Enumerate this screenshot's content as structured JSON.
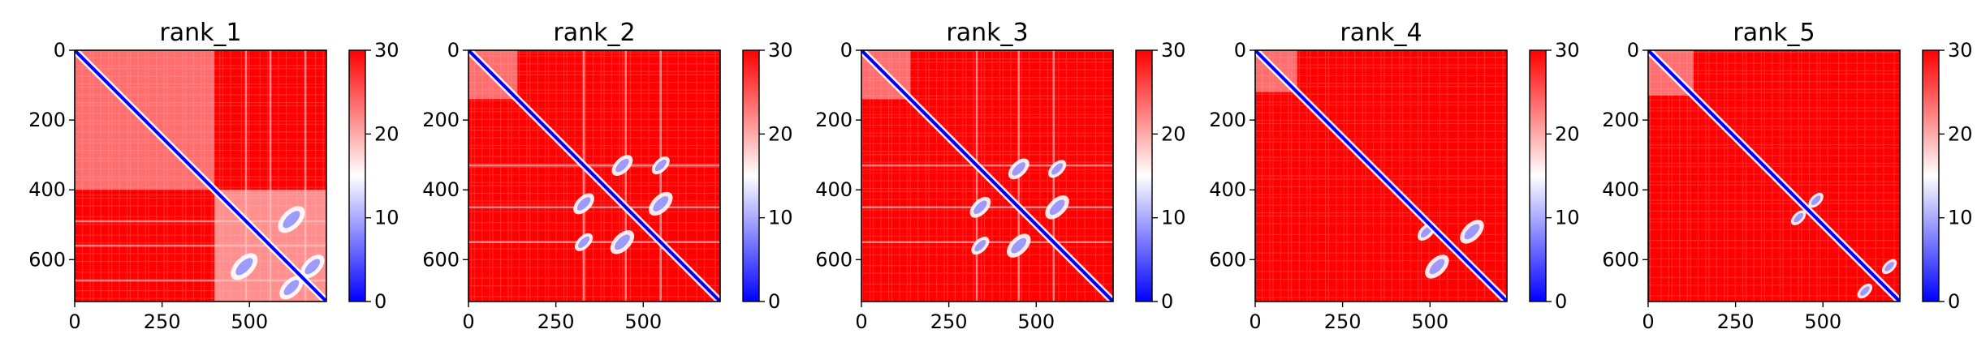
{
  "figure": {
    "description_free": true
  },
  "chart_data": [
    {
      "type": "heatmap",
      "title": "rank_1",
      "xlim": [
        0,
        720
      ],
      "ylim": [
        720,
        0
      ],
      "xticks": [
        0,
        250,
        500
      ],
      "yticks": [
        0,
        200,
        400,
        600
      ],
      "colorbar": {
        "min": 0,
        "max": 30,
        "ticks": [
          0,
          10,
          20,
          30
        ],
        "colormap": "bwr"
      },
      "colors": {
        "low": "#0000ff",
        "mid": "#ffffff",
        "high": "#ff0000"
      },
      "near_diagonal_region": [
        [
          0,
          400
        ]
      ],
      "domains": [
        [
          400,
          720
        ]
      ],
      "stripes": [
        490,
        560,
        660
      ],
      "lobes": [
        [
          485,
          620,
          45
        ],
        [
          620,
          485,
          45
        ],
        [
          620,
          680,
          40
        ],
        [
          680,
          620,
          40
        ]
      ]
    },
    {
      "type": "heatmap",
      "title": "rank_2",
      "xlim": [
        0,
        720
      ],
      "ylim": [
        720,
        0
      ],
      "xticks": [
        0,
        250,
        500
      ],
      "yticks": [
        0,
        200,
        400,
        600
      ],
      "colorbar": {
        "min": 0,
        "max": 30,
        "ticks": [
          0,
          10,
          20,
          30
        ],
        "colormap": "bwr"
      },
      "colors": {
        "low": "#0000ff",
        "mid": "#ffffff",
        "high": "#ff0000"
      },
      "near_diagonal_region": [
        [
          0,
          140
        ]
      ],
      "domains": [],
      "stripes": [
        330,
        450,
        550
      ],
      "lobes": [
        [
          330,
          440,
          35
        ],
        [
          440,
          330,
          35
        ],
        [
          440,
          550,
          40
        ],
        [
          550,
          440,
          40
        ],
        [
          330,
          550,
          30
        ],
        [
          550,
          330,
          30
        ]
      ]
    },
    {
      "type": "heatmap",
      "title": "rank_3",
      "xlim": [
        0,
        720
      ],
      "ylim": [
        720,
        0
      ],
      "xticks": [
        0,
        250,
        500
      ],
      "yticks": [
        0,
        200,
        400,
        600
      ],
      "colorbar": {
        "min": 0,
        "max": 30,
        "ticks": [
          0,
          10,
          20,
          30
        ],
        "colormap": "bwr"
      },
      "colors": {
        "low": "#0000ff",
        "mid": "#ffffff",
        "high": "#ff0000"
      },
      "near_diagonal_region": [
        [
          0,
          140
        ]
      ],
      "domains": [],
      "stripes": [
        330,
        450,
        550
      ],
      "lobes": [
        [
          340,
          450,
          35
        ],
        [
          450,
          340,
          35
        ],
        [
          450,
          560,
          40
        ],
        [
          560,
          450,
          40
        ],
        [
          340,
          560,
          30
        ],
        [
          560,
          340,
          30
        ]
      ]
    },
    {
      "type": "heatmap",
      "title": "rank_4",
      "xlim": [
        0,
        720
      ],
      "ylim": [
        720,
        0
      ],
      "xticks": [
        0,
        250,
        500
      ],
      "yticks": [
        0,
        200,
        400,
        600
      ],
      "colorbar": {
        "min": 0,
        "max": 30,
        "ticks": [
          0,
          10,
          20,
          30
        ],
        "colormap": "bwr"
      },
      "colors": {
        "low": "#0000ff",
        "mid": "#ffffff",
        "high": "#ff0000"
      },
      "near_diagonal_region": [
        [
          0,
          120
        ]
      ],
      "domains": [],
      "stripes": [],
      "lobes": [
        [
          520,
          620,
          40
        ],
        [
          620,
          520,
          40
        ],
        [
          490,
          520,
          30
        ]
      ]
    },
    {
      "type": "heatmap",
      "title": "rank_5",
      "xlim": [
        0,
        720
      ],
      "ylim": [
        720,
        0
      ],
      "xticks": [
        0,
        250,
        500
      ],
      "yticks": [
        0,
        200,
        400,
        600
      ],
      "colorbar": {
        "min": 0,
        "max": 30,
        "ticks": [
          0,
          10,
          20,
          30
        ],
        "colormap": "bwr"
      },
      "colors": {
        "low": "#0000ff",
        "mid": "#ffffff",
        "high": "#ff0000"
      },
      "near_diagonal_region": [
        [
          0,
          130
        ]
      ],
      "domains": [],
      "stripes": [],
      "lobes": [
        [
          430,
          480,
          25
        ],
        [
          480,
          430,
          25
        ],
        [
          620,
          690,
          25
        ],
        [
          690,
          620,
          25
        ]
      ]
    }
  ]
}
